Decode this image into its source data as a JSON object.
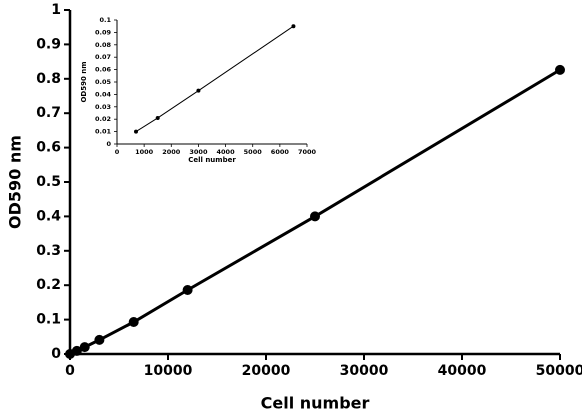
{
  "chart_data": [
    {
      "type": "line",
      "x_label": "Cell number",
      "y_label": "OD590 nm",
      "x": [
        0,
        700,
        1500,
        3000,
        6500,
        12000,
        25000,
        50000
      ],
      "series": [
        {
          "color": "#000000",
          "values": [
            0,
            0.009,
            0.02,
            0.041,
            0.093,
            0.186,
            0.4,
            0.826
          ]
        }
      ],
      "xlim": [
        0,
        50000
      ],
      "xticks": [
        0,
        10000,
        20000,
        30000,
        40000,
        50000
      ],
      "ylim": [
        0,
        1
      ],
      "yticks": [
        0,
        0.1,
        0.2,
        0.3,
        0.4,
        0.5,
        0.6,
        0.7,
        0.8,
        0.9,
        1
      ],
      "grid": false
    },
    {
      "type": "line",
      "x_label": "Cell number",
      "y_label": "OD590 nm",
      "x": [
        700,
        1500,
        3000,
        6500
      ],
      "series": [
        {
          "color": "#000000",
          "values": [
            0.01,
            0.021,
            0.043,
            0.095
          ]
        }
      ],
      "xlim": [
        0,
        7000
      ],
      "xticks": [
        0,
        1000,
        2000,
        3000,
        4000,
        5000,
        6000,
        7000
      ],
      "ylim": [
        0,
        0.1
      ],
      "yticks": [
        0,
        0.01,
        0.02,
        0.03,
        0.04,
        0.05,
        0.06,
        0.07,
        0.08,
        0.09,
        0.1
      ],
      "grid": false
    }
  ]
}
